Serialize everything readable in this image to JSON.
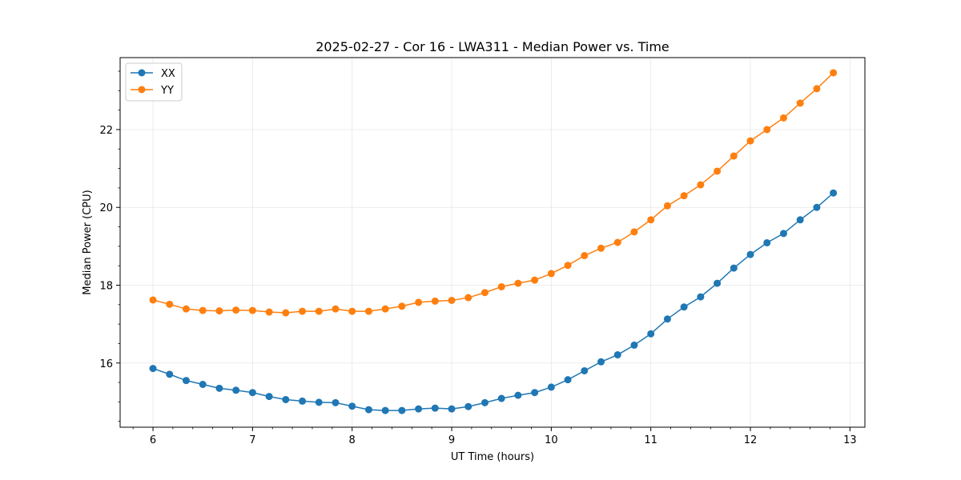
{
  "chart_data": {
    "type": "line",
    "title": "2025-02-27 - Cor 16 - LWA311 - Median Power vs. Time",
    "xlabel": "UT Time (hours)",
    "ylabel": "Median Power (CPU)",
    "xlim": [
      5.67,
      13.15
    ],
    "ylim": [
      14.35,
      23.85
    ],
    "xticks": [
      6,
      7,
      8,
      9,
      10,
      11,
      12,
      13
    ],
    "yticks": [
      16,
      18,
      20,
      22
    ],
    "grid": true,
    "legend": "upper-left",
    "x": [
      6.0,
      6.1667,
      6.3333,
      6.5,
      6.6667,
      6.8333,
      7.0,
      7.1667,
      7.3333,
      7.5,
      7.6667,
      7.8333,
      8.0,
      8.1667,
      8.3333,
      8.5,
      8.6667,
      8.8333,
      9.0,
      9.1667,
      9.3333,
      9.5,
      9.6667,
      9.8333,
      10.0,
      10.1667,
      10.3333,
      10.5,
      10.6667,
      10.8333,
      11.0,
      11.1667,
      11.3333,
      11.5,
      11.6667,
      11.8333,
      12.0,
      12.1667,
      12.3333,
      12.5,
      12.6667,
      12.8333
    ],
    "series": [
      {
        "name": "XX",
        "color": "#1f77b4",
        "values": [
          15.86,
          15.71,
          15.55,
          15.45,
          15.35,
          15.3,
          15.24,
          15.14,
          15.06,
          15.02,
          14.99,
          14.98,
          14.89,
          14.8,
          14.78,
          14.78,
          14.82,
          14.84,
          14.82,
          14.88,
          14.98,
          15.09,
          15.17,
          15.24,
          15.38,
          15.57,
          15.8,
          16.03,
          16.21,
          16.46,
          16.75,
          17.13,
          17.44,
          17.7,
          18.05,
          18.44,
          18.79,
          19.09,
          19.33,
          19.68,
          20.0,
          20.37
        ]
      },
      {
        "name": "YY",
        "color": "#ff7f0e",
        "values": [
          17.62,
          17.51,
          17.39,
          17.35,
          17.34,
          17.36,
          17.35,
          17.31,
          17.29,
          17.33,
          17.33,
          17.39,
          17.33,
          17.33,
          17.39,
          17.46,
          17.56,
          17.59,
          17.61,
          17.68,
          17.81,
          17.96,
          18.05,
          18.13,
          18.3,
          18.51,
          18.76,
          18.95,
          19.1,
          19.37,
          19.68,
          20.04,
          20.3,
          20.58,
          20.93,
          21.32,
          21.71,
          22.0,
          22.3,
          22.68,
          23.05,
          23.46
        ]
      }
    ]
  }
}
